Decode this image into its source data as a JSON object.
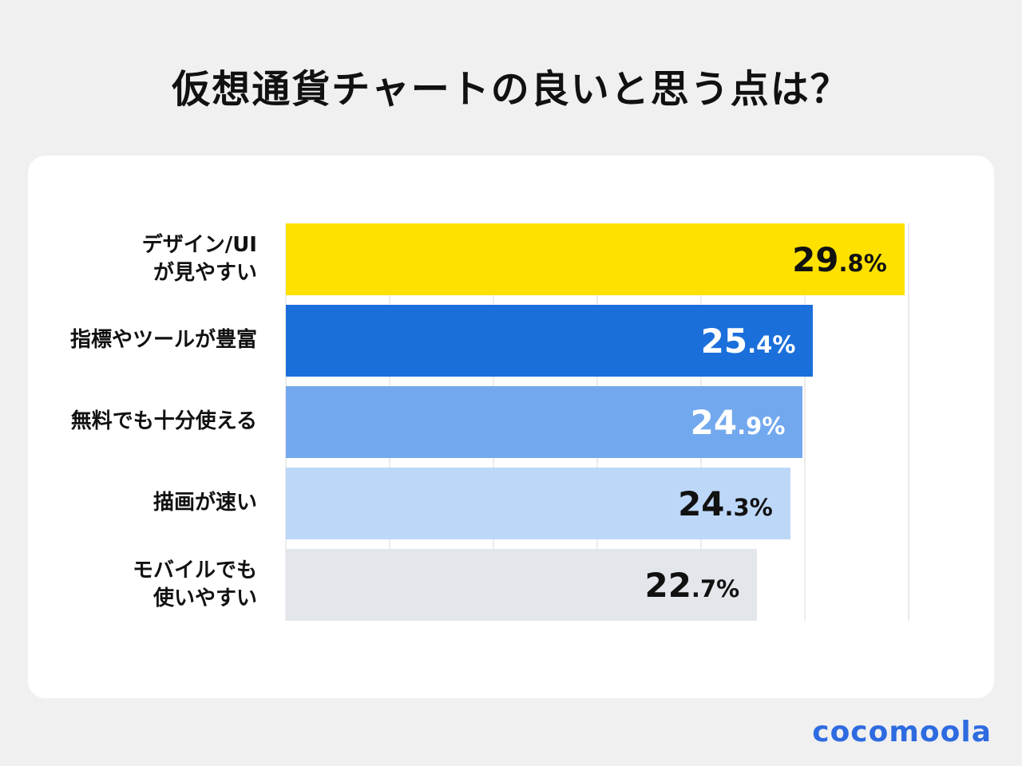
{
  "page": {
    "background": "#f0f0f0"
  },
  "logo": {
    "text": "cocomoola",
    "color": "#2e6be0"
  },
  "chart_data": {
    "type": "bar",
    "orientation": "horizontal",
    "title": "仮想通貨チャートの良いと思う点は？",
    "categories": [
      "デザイン/UI\nが見やすい",
      "指標やツールが豊富",
      "無料でも十分使える",
      "描画が速い",
      "モバイルでも\n使いやすい"
    ],
    "values": [
      29.8,
      25.4,
      24.9,
      24.3,
      22.7
    ],
    "unit": "%",
    "xlim": [
      0,
      30
    ],
    "gridlines": [
      0,
      5,
      10,
      15,
      20,
      25,
      30
    ],
    "grid": true,
    "legend": "none",
    "bar_colors": [
      "#ffe100",
      "#1b6fdb",
      "#72a8ee",
      "#bdd7f8",
      "#e3e6ea"
    ],
    "value_label_colors": [
      "#111111",
      "#ffffff",
      "#ffffff",
      "#111111",
      "#111111"
    ]
  }
}
